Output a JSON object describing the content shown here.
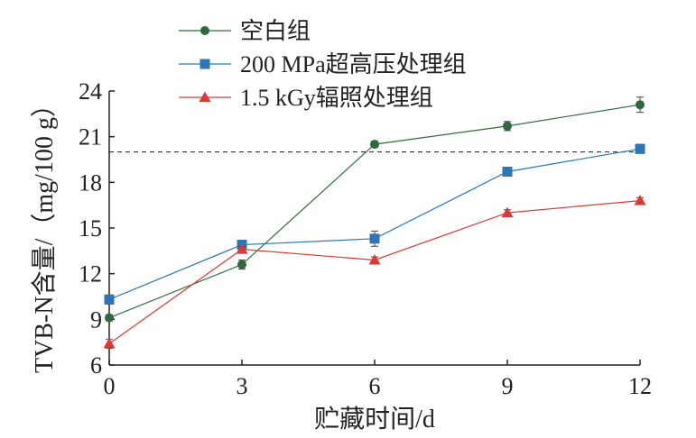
{
  "chart_data": {
    "type": "line",
    "xlabel": "贮藏时间/d",
    "ylabel": "TVB-N含量/（mg/100 g）",
    "x": [
      0,
      3,
      6,
      9,
      12
    ],
    "xticks": [
      0,
      3,
      6,
      9,
      12
    ],
    "xlim": [
      0,
      12
    ],
    "yticks": [
      6,
      9,
      12,
      15,
      18,
      21,
      24
    ],
    "ylim": [
      6,
      24
    ],
    "grid": false,
    "legend_position": "top",
    "reference_line": {
      "y": 20,
      "style": "dashed"
    },
    "series": [
      {
        "name": "空白组",
        "marker": "circle",
        "color": "#2f6b3a",
        "values": [
          9.1,
          12.6,
          20.5,
          21.7,
          23.1
        ],
        "errors": [
          0.2,
          0.3,
          0.2,
          0.3,
          0.5
        ]
      },
      {
        "name": "200 MPa超高压处理组",
        "marker": "square",
        "color": "#2e75b6",
        "values": [
          10.3,
          13.9,
          14.3,
          18.7,
          20.2
        ],
        "errors": [
          0.3,
          0.3,
          0.5,
          0.2,
          0.3
        ]
      },
      {
        "name": "1.5 kGy辐照处理组",
        "marker": "triangle",
        "color": "#d93a36",
        "values": [
          7.4,
          13.6,
          12.9,
          16.0,
          16.8
        ],
        "errors": [
          0.3,
          0.2,
          0.2,
          0.2,
          0.2
        ]
      }
    ]
  }
}
